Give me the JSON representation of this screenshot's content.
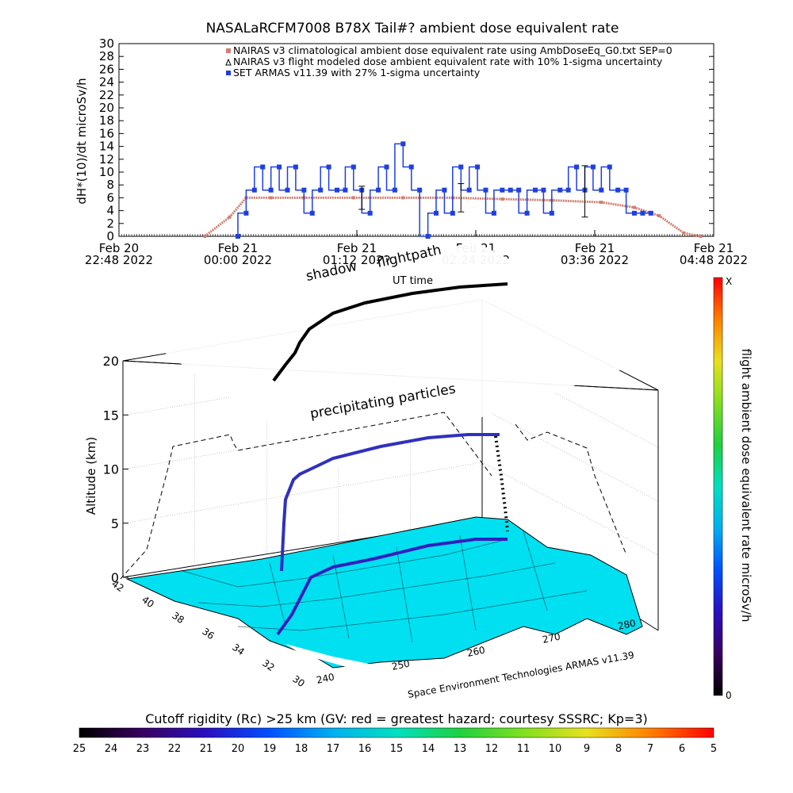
{
  "title": "NASALaRCFM7008  B78X Tail#? ambient dose equivalent rate",
  "chart_data": [
    {
      "type": "line",
      "ylabel": "dH*(10)/dt microSv/h",
      "ylim": [
        0,
        30
      ],
      "yticks": [
        "0",
        "2",
        "4",
        "6",
        "8",
        "10",
        "12",
        "14",
        "16",
        "18",
        "20",
        "22",
        "24",
        "26",
        "28",
        "30"
      ],
      "x_tick_labels": [
        {
          "day": "Feb 20",
          "time": "22:48 2022"
        },
        {
          "day": "Feb 21",
          "time": "00:00 2022"
        },
        {
          "day": "Feb 21",
          "time": "01:12 2022"
        },
        {
          "day": "Feb 21",
          "time": "02:24 2022"
        },
        {
          "day": "Feb 21",
          "time": "03:36 2022"
        },
        {
          "day": "Feb 21",
          "time": "04:48 2022"
        }
      ],
      "legend": [
        {
          "name": "NAIRAS v3 climatological ambient dose equivalent rate using AmbDoseEq_G0.txt SEP=0",
          "color": "#d08070"
        },
        {
          "name": "NAIRAS v3 flight modeled dose ambient equivalent rate with 10% 1-sigma uncertainty",
          "color": "#000000"
        },
        {
          "name": "SET ARMAS v11.39 with 27% 1-sigma uncertainty",
          "color": "#1f3fe0"
        }
      ],
      "series": [
        {
          "name": "NAIRAS v3 climatological ambient dose equivalent rate using AmbDoseEq_G0.txt SEP=0",
          "x": [
            "2022-02-20 23:40",
            "2022-02-20 23:55",
            "2022-02-21 00:05",
            "2022-02-21 00:20",
            "2022-02-21 00:40",
            "2022-02-21 01:10",
            "2022-02-21 01:40",
            "2022-02-21 02:10",
            "2022-02-21 02:40",
            "2022-02-21 03:10",
            "2022-02-21 03:40",
            "2022-02-21 04:00",
            "2022-02-21 04:15",
            "2022-02-21 04:30",
            "2022-02-21 04:40"
          ],
          "y": [
            0,
            3,
            6,
            6,
            6,
            6,
            6,
            6,
            5.8,
            5.6,
            5.3,
            4.5,
            3.2,
            0.5,
            0
          ]
        },
        {
          "name": "SET ARMAS v11.39 with 27% 1-sigma uncertainty",
          "x": [
            "2022-02-21 00:00",
            "2022-02-21 00:05",
            "2022-02-21 00:10",
            "2022-02-21 00:15",
            "2022-02-21 00:20",
            "2022-02-21 00:25",
            "2022-02-21 00:30",
            "2022-02-21 00:35",
            "2022-02-21 00:40",
            "2022-02-21 00:45",
            "2022-02-21 00:50",
            "2022-02-21 00:55",
            "2022-02-21 01:00",
            "2022-02-21 01:05",
            "2022-02-21 01:10",
            "2022-02-21 01:15",
            "2022-02-21 01:20",
            "2022-02-21 01:25",
            "2022-02-21 01:30",
            "2022-02-21 01:35",
            "2022-02-21 01:40",
            "2022-02-21 01:45",
            "2022-02-21 01:50",
            "2022-02-21 01:55",
            "2022-02-21 02:00",
            "2022-02-21 02:05",
            "2022-02-21 02:10",
            "2022-02-21 02:15",
            "2022-02-21 02:20",
            "2022-02-21 02:25",
            "2022-02-21 02:30",
            "2022-02-21 02:35",
            "2022-02-21 02:40",
            "2022-02-21 02:45",
            "2022-02-21 02:50",
            "2022-02-21 02:55",
            "2022-02-21 03:00",
            "2022-02-21 03:05",
            "2022-02-21 03:10",
            "2022-02-21 03:15",
            "2022-02-21 03:20",
            "2022-02-21 03:25",
            "2022-02-21 03:30",
            "2022-02-21 03:35",
            "2022-02-21 03:40",
            "2022-02-21 03:45",
            "2022-02-21 03:50",
            "2022-02-21 03:55",
            "2022-02-21 04:00",
            "2022-02-21 04:05",
            "2022-02-21 04:10"
          ],
          "y": [
            0,
            3.6,
            7.2,
            10.8,
            7.2,
            10.8,
            7.2,
            10.8,
            7.2,
            3.6,
            7.2,
            10.8,
            7.2,
            7.2,
            10.8,
            7.2,
            3.6,
            7.2,
            10.8,
            7.2,
            14.4,
            10.8,
            7.2,
            0,
            3.6,
            7.2,
            3.6,
            10.8,
            7.2,
            10.8,
            7.2,
            3.6,
            7.2,
            7.2,
            7.2,
            3.6,
            7.2,
            7.2,
            3.6,
            7.2,
            7.2,
            10.8,
            7.2,
            10.8,
            7.2,
            10.8,
            7.2,
            7.2,
            3.6,
            3.6,
            3.6
          ]
        }
      ]
    },
    {
      "type": "scatter",
      "zlabel": "Altitude (km)",
      "zticks": [
        "0",
        "5",
        "10",
        "15",
        "20"
      ],
      "lat_ticks": [
        "30",
        "32",
        "34",
        "36",
        "38",
        "40",
        "42"
      ],
      "lon_ticks": [
        "240",
        "250",
        "260",
        "270",
        "280"
      ],
      "annotations": [
        "shadow",
        "flightpath",
        "UT time",
        "precipitating particles"
      ],
      "credit": "Space Environment Technologies ARMAS v11.39",
      "colorbar": {
        "label": "flight ambient dose equivalent rate microSv/h",
        "top": "X",
        "bottom": "0"
      }
    },
    {
      "type": "heatmap",
      "label": "Cutoff rigidity (Rc) >25 km (GV: red = greatest hazard; courtesy SSSRC; Kp=3)",
      "ticks": [
        "25",
        "24",
        "23",
        "22",
        "21",
        "20",
        "19",
        "18",
        "17",
        "16",
        "15",
        "14",
        "13",
        "12",
        "11",
        "10",
        "9",
        "8",
        "7",
        "6",
        "5"
      ]
    }
  ]
}
